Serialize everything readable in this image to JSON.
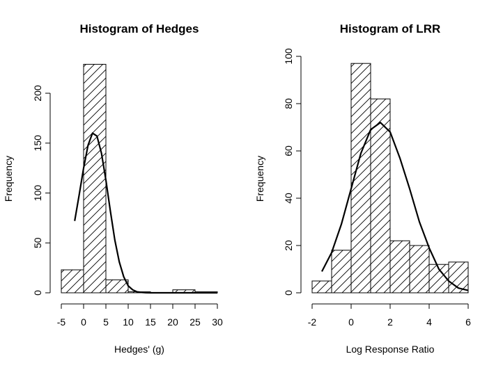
{
  "chart_data": [
    {
      "type": "bar",
      "subtype": "histogram",
      "title": "Histogram of Hedges",
      "xlabel": "Hedges' (g)",
      "ylabel": "Frequency",
      "xlim": [
        -5,
        30
      ],
      "ylim": [
        0,
        230
      ],
      "xticks": [
        -5,
        0,
        5,
        10,
        15,
        20,
        25,
        30
      ],
      "yticks": [
        0,
        50,
        100,
        150,
        200
      ],
      "bins": [
        {
          "x0": -5,
          "x1": 0,
          "count": 23
        },
        {
          "x0": 0,
          "x1": 5,
          "count": 229
        },
        {
          "x0": 5,
          "x1": 10,
          "count": 13
        },
        {
          "x0": 10,
          "x1": 15,
          "count": 1
        },
        {
          "x0": 15,
          "x1": 20,
          "count": 0
        },
        {
          "x0": 20,
          "x1": 25,
          "count": 3
        },
        {
          "x0": 25,
          "x1": 30,
          "count": 1
        }
      ],
      "fill": "diagonal hatching",
      "curve": {
        "type": "normal density overlay",
        "x": [
          -2,
          -1,
          0,
          1,
          2,
          3,
          4,
          5,
          6,
          7,
          8,
          9,
          10,
          11,
          12,
          13,
          14,
          15,
          16,
          18,
          20,
          22,
          25,
          28,
          30
        ],
        "y": [
          72,
          98,
          125,
          148,
          160,
          157,
          140,
          113,
          82,
          53,
          31,
          16,
          7,
          3,
          1,
          0.4,
          0.1,
          0,
          0,
          0,
          0,
          0,
          0,
          0,
          0
        ]
      }
    },
    {
      "type": "bar",
      "subtype": "histogram",
      "title": "Histogram of LRR",
      "xlabel": "Log Response Ratio",
      "ylabel": "Frequency",
      "xlim": [
        -2,
        6
      ],
      "ylim": [
        0,
        100
      ],
      "xticks": [
        -2,
        0,
        2,
        4,
        6
      ],
      "yticks": [
        0,
        20,
        40,
        60,
        80,
        100
      ],
      "bins": [
        {
          "x0": -2,
          "x1": -1,
          "count": 5
        },
        {
          "x0": -1,
          "x1": 0,
          "count": 18
        },
        {
          "x0": 0,
          "x1": 1,
          "count": 97
        },
        {
          "x0": 1,
          "x1": 2,
          "count": 82
        },
        {
          "x0": 2,
          "x1": 3,
          "count": 22
        },
        {
          "x0": 3,
          "x1": 4,
          "count": 20
        },
        {
          "x0": 4,
          "x1": 5,
          "count": 12
        },
        {
          "x0": 5,
          "x1": 6,
          "count": 13
        }
      ],
      "fill": "diagonal hatching",
      "curve": {
        "type": "normal density overlay",
        "x": [
          -1.5,
          -1,
          -0.5,
          0,
          0.5,
          1,
          1.5,
          2,
          2.5,
          3,
          3.5,
          4,
          4.5,
          5,
          5.5,
          6
        ],
        "y": [
          9,
          17,
          29,
          44,
          59,
          69,
          72,
          68,
          57,
          44,
          30,
          19,
          10,
          5,
          2,
          1
        ]
      }
    }
  ]
}
